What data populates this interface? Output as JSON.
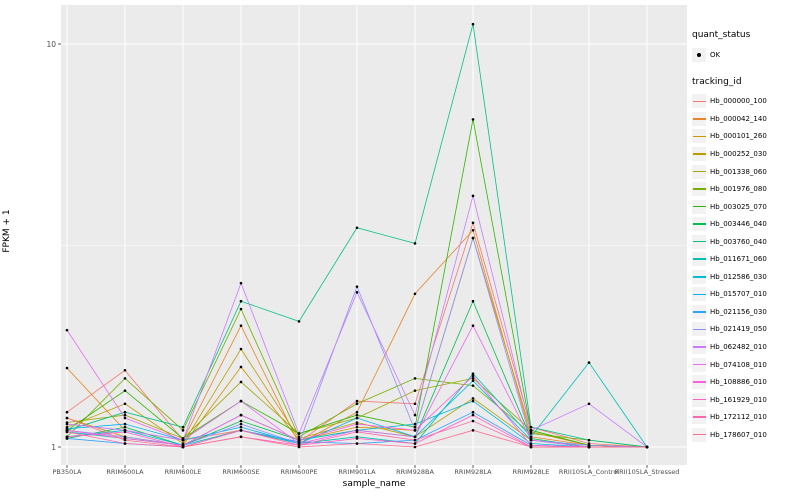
{
  "legend": {
    "quant_status_title": "quant_status",
    "quant_status_items": [
      {
        "label": "OK",
        "marker": "black-point"
      }
    ],
    "tracking_id_title": "tracking_id"
  },
  "chart_data": {
    "type": "line",
    "title": "",
    "xlabel": "sample_name",
    "ylabel": "FPKM + 1",
    "y_scale": "log10",
    "y_ticks": [
      1,
      10
    ],
    "y_minor": [
      3.1623
    ],
    "ylim": [
      0.95,
      12.5
    ],
    "grid": true,
    "legend_position": "right",
    "panel_bg": "#EBEBEB",
    "grid_color": "#FFFFFF",
    "point_color": "#000000",
    "point_shape": "filled-circle",
    "categories": [
      "PB350LA",
      "RRIM600LA",
      "RRIM600LE",
      "RRIM600SE",
      "RRIM600PE",
      "RRIM901LA",
      "RRIM928BA",
      "RRIM928LA",
      "RRIM928LE",
      "RRII105LA_Control",
      "RRII105LA_Stressed"
    ],
    "series": [
      {
        "name": "Hb_000000_100",
        "color": "#F8766D",
        "values": [
          1.22,
          1.55,
          1.04,
          1.1,
          1.03,
          1.3,
          1.28,
          3.6,
          1.12,
          1.02,
          1.0
        ]
      },
      {
        "name": "Hb_000042_140",
        "color": "#E88526",
        "values": [
          1.57,
          1.1,
          1.04,
          2.0,
          1.02,
          1.22,
          2.4,
          3.45,
          1.06,
          1.01,
          1.0
        ]
      },
      {
        "name": "Hb_000101_260",
        "color": "#D39200",
        "values": [
          1.18,
          1.06,
          1.01,
          1.58,
          1.04,
          1.12,
          1.1,
          3.3,
          1.09,
          1.01,
          1.0
        ]
      },
      {
        "name": "Hb_000252_030",
        "color": "#BB9D00",
        "values": [
          1.12,
          1.28,
          1.02,
          1.75,
          1.05,
          1.15,
          1.06,
          1.32,
          1.04,
          1.0,
          1.0
        ]
      },
      {
        "name": "Hb_001338_060",
        "color": "#9DA700",
        "values": [
          1.15,
          1.2,
          1.05,
          1.45,
          1.08,
          1.18,
          1.38,
          1.48,
          1.1,
          1.01,
          1.0
        ]
      },
      {
        "name": "Hb_001976_080",
        "color": "#75AF00",
        "values": [
          1.06,
          1.48,
          1.1,
          2.2,
          1.06,
          1.28,
          1.48,
          1.42,
          1.08,
          1.04,
          1.0
        ]
      },
      {
        "name": "Hb_003025_070",
        "color": "#2FB600",
        "values": [
          1.1,
          1.38,
          1.05,
          1.3,
          1.08,
          1.2,
          1.12,
          6.5,
          1.1,
          1.01,
          1.0
        ]
      },
      {
        "name": "Hb_003446_040",
        "color": "#00BC51",
        "values": [
          1.05,
          1.12,
          1.01,
          1.16,
          1.04,
          1.1,
          1.06,
          2.3,
          1.05,
          1.0,
          1.0
        ]
      },
      {
        "name": "Hb_003760_040",
        "color": "#00C087",
        "values": [
          1.1,
          1.22,
          1.12,
          2.3,
          2.05,
          3.5,
          3.2,
          11.2,
          1.12,
          1.04,
          1.0
        ]
      },
      {
        "name": "Hb_011671_060",
        "color": "#00C0B2",
        "values": [
          1.09,
          1.05,
          1.01,
          1.1,
          1.02,
          1.06,
          1.02,
          1.52,
          1.06,
          1.62,
          1.0
        ]
      },
      {
        "name": "Hb_012586_030",
        "color": "#00BCD6",
        "values": [
          1.06,
          1.1,
          1.01,
          1.2,
          1.04,
          1.1,
          1.14,
          1.3,
          1.02,
          1.0,
          1.0
        ]
      },
      {
        "name": "Hb_015707_010",
        "color": "#00B3F2",
        "values": [
          1.11,
          1.14,
          1.04,
          1.12,
          1.02,
          1.18,
          1.06,
          1.46,
          1.04,
          1.0,
          1.0
        ]
      },
      {
        "name": "Hb_021156_030",
        "color": "#29A3FF",
        "values": [
          1.05,
          1.02,
          1.0,
          1.1,
          1.03,
          1.02,
          1.04,
          1.22,
          1.01,
          1.0,
          1.0
        ]
      },
      {
        "name": "Hb_021419_050",
        "color": "#8B93FF",
        "values": [
          1.1,
          1.06,
          1.01,
          1.14,
          1.02,
          2.5,
          1.1,
          3.3,
          1.04,
          1.01,
          1.0
        ]
      },
      {
        "name": "Hb_062482_010",
        "color": "#C77CFF",
        "values": [
          1.14,
          1.1,
          1.04,
          2.55,
          1.08,
          2.42,
          1.2,
          4.2,
          1.1,
          1.28,
          1.0
        ]
      },
      {
        "name": "Hb_074108_010",
        "color": "#E76BF3",
        "values": [
          1.95,
          1.18,
          1.04,
          1.3,
          1.02,
          1.1,
          1.06,
          2.0,
          1.04,
          1.0,
          1.0
        ]
      },
      {
        "name": "Hb_108886_010",
        "color": "#FA62DB",
        "values": [
          1.1,
          1.05,
          1.01,
          1.2,
          1.04,
          1.14,
          1.1,
          1.5,
          1.01,
          1.0,
          1.0
        ]
      },
      {
        "name": "Hb_161929_010",
        "color": "#FF61C7",
        "values": [
          1.06,
          1.09,
          1.0,
          1.06,
          1.01,
          1.05,
          1.02,
          1.2,
          1.0,
          1.0,
          1.0
        ]
      },
      {
        "name": "Hb_172112_010",
        "color": "#FF67AC",
        "values": [
          1.09,
          1.02,
          1.0,
          1.1,
          1.01,
          1.09,
          1.04,
          1.16,
          1.0,
          1.0,
          1.0
        ]
      },
      {
        "name": "Hb_178607_010",
        "color": "#FF6C90",
        "values": [
          1.18,
          1.04,
          1.0,
          1.06,
          1.0,
          1.02,
          1.0,
          1.1,
          1.0,
          1.0,
          1.0
        ]
      }
    ]
  }
}
